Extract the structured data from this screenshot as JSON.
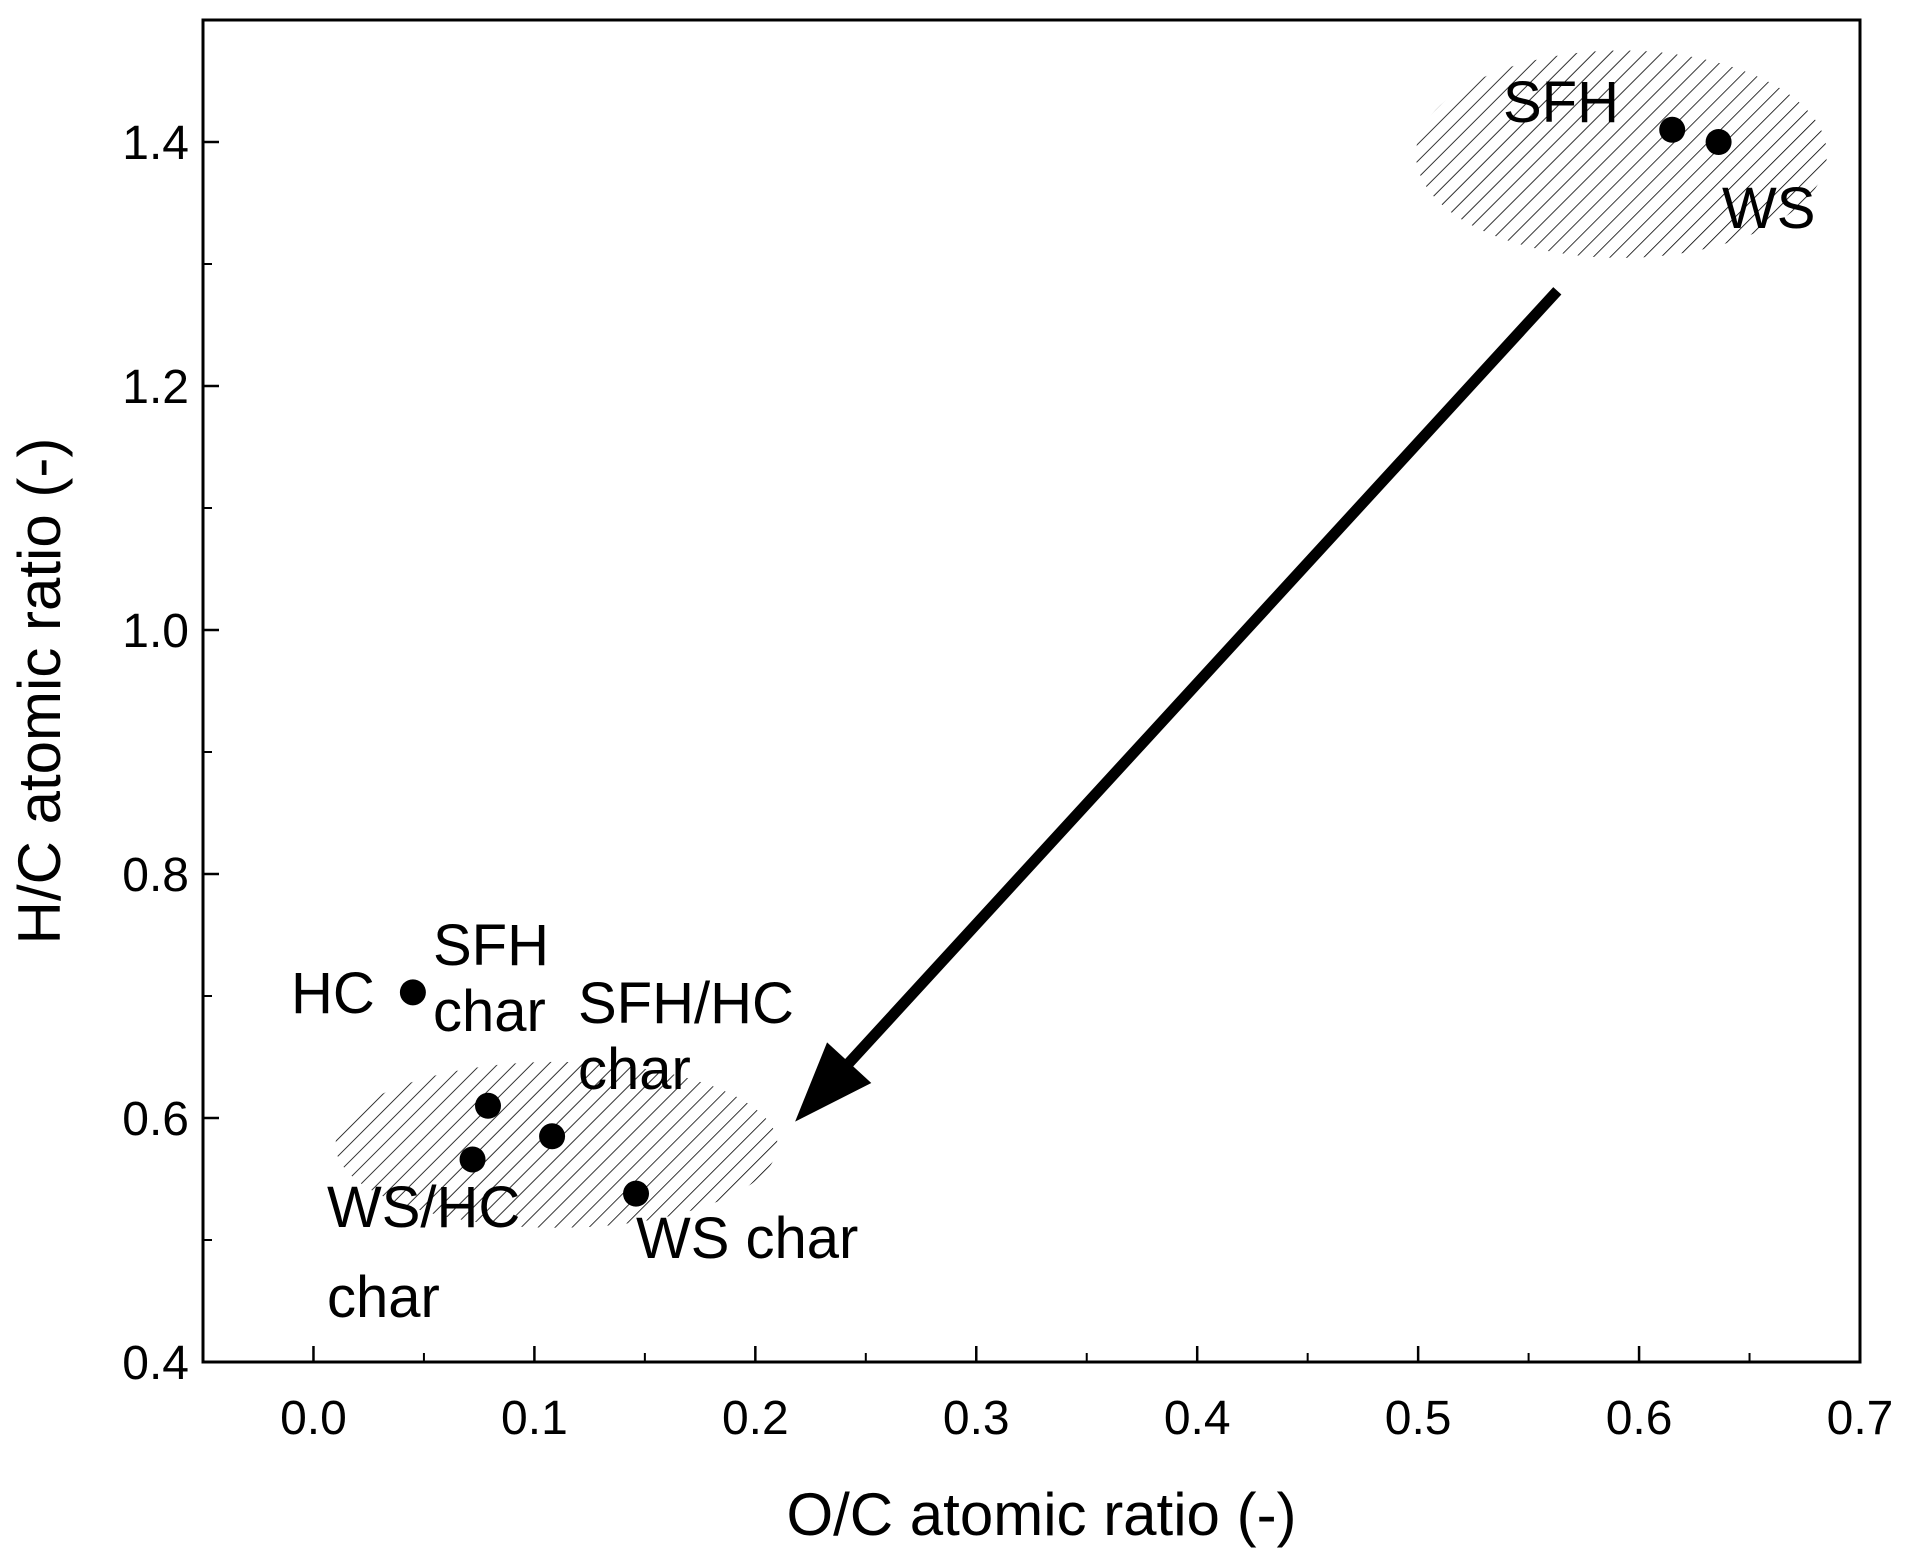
{
  "chart_data": {
    "type": "scatter",
    "title": "",
    "xlabel": "O/C atomic ratio (-)",
    "ylabel": "H/C atomic ratio (-)",
    "xlim": [
      -0.05,
      0.7
    ],
    "ylim": [
      0.4,
      1.5
    ],
    "x_ticks": [
      "0.0",
      "0.1",
      "0.2",
      "0.3",
      "0.4",
      "0.5",
      "0.6",
      "0.7"
    ],
    "y_ticks": [
      "0.4",
      "0.6",
      "0.8",
      "1.0",
      "1.2",
      "1.4"
    ],
    "grid": false,
    "legend": "none",
    "marker_color": "#000000",
    "points": [
      {
        "label_lines": [
          "SFH"
        ],
        "x": 0.615,
        "y": 1.41
      },
      {
        "label_lines": [
          "WS"
        ],
        "x": 0.636,
        "y": 1.4
      },
      {
        "label_lines": [
          "HC"
        ],
        "x": 0.045,
        "y": 0.703
      },
      {
        "label_lines": [
          "SFH",
          "char"
        ],
        "x": 0.079,
        "y": 0.61
      },
      {
        "label_lines": [
          "SFH/HC",
          "char"
        ],
        "x": 0.108,
        "y": 0.585
      },
      {
        "label_lines": [
          "WS/HC",
          "char"
        ],
        "x": 0.072,
        "y": 0.566
      },
      {
        "label_lines": [
          "WS char"
        ],
        "x": 0.146,
        "y": 0.538
      }
    ],
    "regions": [
      {
        "name": "raw-biomass-region",
        "cx": 0.592,
        "cy": 1.39,
        "rx": 0.093,
        "ry": 0.085,
        "pattern": "diagonal-hatch"
      },
      {
        "name": "char-region",
        "cx": 0.11,
        "cy": 0.578,
        "rx": 0.1,
        "ry": 0.068,
        "pattern": "diagonal-hatch"
      }
    ],
    "arrow": {
      "from": [
        0.563,
        1.278
      ],
      "to": [
        0.218,
        0.597
      ]
    }
  }
}
